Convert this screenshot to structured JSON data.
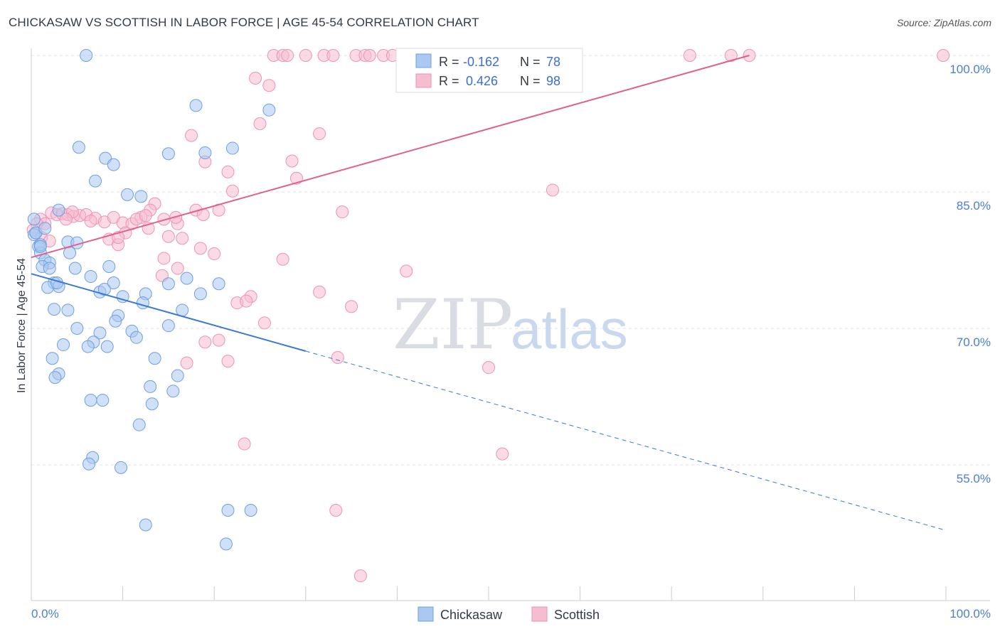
{
  "header": {
    "title": "CHICKASAW VS SCOTTISH IN LABOR FORCE | AGE 45-54 CORRELATION CHART",
    "source": "Source: ZipAtlas.com"
  },
  "watermark": {
    "zip": "ZIP",
    "atlas": "atlas"
  },
  "chart_data": {
    "type": "scatter",
    "title": "CHICKASAW VS SCOTTISH IN LABOR FORCE | AGE 45-54 CORRELATION CHART",
    "xlabel": "",
    "ylabel": "In Labor Force | Age 45-54",
    "xlim": [
      0,
      100
    ],
    "ylim": [
      40,
      102
    ],
    "x_tick_labels": [
      "0.0%",
      "100.0%"
    ],
    "y_ticks": [
      {
        "value": 100,
        "label": "100.0%"
      },
      {
        "value": 85,
        "label": "85.0%"
      },
      {
        "value": 70,
        "label": "70.0%"
      },
      {
        "value": 55,
        "label": "55.0%"
      }
    ],
    "grid": true,
    "legend": {
      "position": "top-center",
      "entries": [
        {
          "name": "Chickasaw",
          "r_label": "R =",
          "r_value": "-0.162",
          "n_label": "N =",
          "n_value": "78"
        },
        {
          "name": "Scottish",
          "r_label": "R =",
          "r_value": "0.426",
          "n_label": "N =",
          "n_value": "98"
        }
      ]
    },
    "colors": {
      "chickasaw_fill": "#aac8f0",
      "chickasaw_stroke": "#6f9fe0",
      "chickasaw_line": "#3a78d4",
      "scottish_fill": "#f6bcd0",
      "scottish_stroke": "#ee93b3",
      "scottish_line": "#e0608e",
      "axis_text": "#4a7fd4",
      "grid": "#e0e3ea"
    },
    "series": [
      {
        "name": "Chickasaw",
        "trend": {
          "x0": 0,
          "y0": 76.0,
          "x1": 30,
          "y1": 67.5,
          "dashed_to_x": 100,
          "dashed_to_y": 47.8
        },
        "points": [
          [
            6.0,
            100.0
          ],
          [
            18.0,
            94.5
          ],
          [
            26.0,
            94.0
          ],
          [
            5.2,
            89.9
          ],
          [
            8.1,
            88.7
          ],
          [
            15.0,
            89.2
          ],
          [
            19.0,
            89.3
          ],
          [
            22.0,
            89.8
          ],
          [
            9.0,
            88.0
          ],
          [
            7.0,
            86.2
          ],
          [
            10.5,
            84.7
          ],
          [
            12.0,
            84.5
          ],
          [
            0.3,
            82.0
          ],
          [
            0.5,
            80.5
          ],
          [
            0.8,
            79.0
          ],
          [
            1.0,
            78.3
          ],
          [
            1.5,
            77.5
          ],
          [
            2.0,
            77.2
          ],
          [
            1.2,
            76.8
          ],
          [
            2.0,
            76.6
          ],
          [
            2.5,
            75.0
          ],
          [
            1.8,
            74.5
          ],
          [
            3.0,
            74.6
          ],
          [
            4.0,
            79.5
          ],
          [
            5.0,
            79.4
          ],
          [
            4.2,
            78.3
          ],
          [
            4.8,
            76.6
          ],
          [
            6.5,
            75.7
          ],
          [
            8.5,
            76.8
          ],
          [
            9.0,
            75.0
          ],
          [
            7.5,
            74.0
          ],
          [
            8.0,
            74.3
          ],
          [
            10.0,
            73.5
          ],
          [
            2.5,
            72.1
          ],
          [
            4.0,
            72.0
          ],
          [
            9.5,
            71.4
          ],
          [
            9.2,
            70.8
          ],
          [
            12.5,
            73.8
          ],
          [
            15.0,
            74.9
          ],
          [
            18.5,
            73.8
          ],
          [
            20.5,
            74.9
          ],
          [
            5.0,
            70.0
          ],
          [
            7.5,
            69.5
          ],
          [
            11.0,
            69.7
          ],
          [
            11.5,
            69.0
          ],
          [
            6.8,
            68.5
          ],
          [
            3.5,
            68.2
          ],
          [
            6.2,
            68.0
          ],
          [
            8.3,
            68.0
          ],
          [
            2.3,
            66.7
          ],
          [
            13.5,
            66.7
          ],
          [
            3.0,
            65.0
          ],
          [
            2.6,
            64.6
          ],
          [
            16.0,
            64.8
          ],
          [
            13.0,
            63.6
          ],
          [
            15.5,
            63.1
          ],
          [
            6.5,
            62.1
          ],
          [
            7.8,
            62.1
          ],
          [
            13.2,
            61.7
          ],
          [
            11.8,
            59.4
          ],
          [
            6.7,
            55.8
          ],
          [
            6.3,
            55.1
          ],
          [
            9.8,
            54.7
          ],
          [
            21.5,
            50.0
          ],
          [
            24.0,
            50.0
          ],
          [
            12.5,
            48.4
          ],
          [
            21.3,
            46.3
          ],
          [
            12.2,
            72.8
          ],
          [
            3.0,
            83.0
          ],
          [
            0.3,
            80.3
          ],
          [
            1.0,
            79.2
          ],
          [
            1.0,
            79.0
          ],
          [
            0.5,
            80.5
          ],
          [
            1.5,
            81.0
          ],
          [
            15.0,
            70.3
          ],
          [
            16.5,
            72.0
          ],
          [
            17.0,
            75.5
          ],
          [
            2.8,
            75.0
          ]
        ]
      },
      {
        "name": "Scottish",
        "trend": {
          "x0": 0,
          "y0": 77.8,
          "x1": 78.5,
          "y1": 100.0
        },
        "points": [
          [
            26.5,
            100.0
          ],
          [
            27.5,
            100.0
          ],
          [
            28.0,
            100.0
          ],
          [
            30.0,
            100.0
          ],
          [
            32.0,
            100.0
          ],
          [
            33.0,
            100.0
          ],
          [
            35.5,
            100.0
          ],
          [
            36.5,
            100.0
          ],
          [
            37.0,
            100.0
          ],
          [
            38.5,
            100.0
          ],
          [
            39.5,
            100.0
          ],
          [
            41.0,
            100.0
          ],
          [
            43.0,
            100.0
          ],
          [
            45.0,
            100.0
          ],
          [
            47.0,
            100.0
          ],
          [
            51.5,
            100.0
          ],
          [
            52.0,
            100.0
          ],
          [
            53.0,
            100.0
          ],
          [
            58.0,
            100.0
          ],
          [
            59.0,
            100.0
          ],
          [
            72.0,
            100.0
          ],
          [
            76.5,
            100.0
          ],
          [
            78.5,
            100.0
          ],
          [
            99.7,
            100.0
          ],
          [
            24.5,
            97.5
          ],
          [
            26.0,
            96.7
          ],
          [
            25.0,
            92.5
          ],
          [
            31.5,
            91.4
          ],
          [
            17.5,
            91.2
          ],
          [
            19.0,
            88.3
          ],
          [
            21.5,
            87.2
          ],
          [
            28.5,
            88.4
          ],
          [
            29.0,
            86.5
          ],
          [
            22.0,
            85.1
          ],
          [
            57.0,
            85.2
          ],
          [
            1.0,
            82.0
          ],
          [
            1.5,
            81.5
          ],
          [
            2.2,
            82.7
          ],
          [
            2.8,
            82.5
          ],
          [
            3.4,
            82.6
          ],
          [
            4.0,
            82.5
          ],
          [
            4.6,
            82.3
          ],
          [
            5.3,
            82.4
          ],
          [
            6.0,
            82.5
          ],
          [
            7.0,
            82.1
          ],
          [
            8.0,
            81.7
          ],
          [
            9.0,
            82.2
          ],
          [
            10.0,
            81.6
          ],
          [
            11.0,
            81.5
          ],
          [
            12.0,
            82.2
          ],
          [
            13.5,
            83.7
          ],
          [
            14.5,
            82.0
          ],
          [
            16.0,
            81.5
          ],
          [
            18.0,
            83.0
          ],
          [
            20.5,
            83.0
          ],
          [
            34.0,
            82.8
          ],
          [
            0.6,
            81.5
          ],
          [
            1.1,
            80.0
          ],
          [
            8.5,
            79.8
          ],
          [
            10.3,
            80.5
          ],
          [
            12.8,
            81.0
          ],
          [
            15.0,
            80.1
          ],
          [
            16.5,
            79.9
          ],
          [
            2.0,
            79.6
          ],
          [
            9.5,
            79.2
          ],
          [
            18.5,
            78.8
          ],
          [
            20.0,
            78.2
          ],
          [
            14.5,
            77.7
          ],
          [
            27.5,
            77.6
          ],
          [
            16.0,
            76.6
          ],
          [
            14.3,
            75.8
          ],
          [
            41.0,
            76.3
          ],
          [
            31.5,
            74.0
          ],
          [
            24.0,
            73.5
          ],
          [
            22.5,
            72.8
          ],
          [
            23.5,
            73.0
          ],
          [
            35.0,
            72.4
          ],
          [
            25.5,
            70.6
          ],
          [
            19.0,
            68.5
          ],
          [
            20.5,
            68.7
          ],
          [
            17.0,
            66.2
          ],
          [
            21.5,
            66.4
          ],
          [
            33.5,
            66.8
          ],
          [
            50.0,
            65.7
          ],
          [
            23.3,
            57.3
          ],
          [
            51.5,
            56.2
          ],
          [
            33.3,
            50.0
          ],
          [
            36.0,
            42.8
          ],
          [
            9.5,
            80.0
          ],
          [
            13.0,
            83.0
          ],
          [
            11.5,
            82.0
          ],
          [
            4.5,
            82.8
          ],
          [
            3.8,
            82.0
          ],
          [
            6.5,
            81.8
          ],
          [
            0.2,
            80.8
          ],
          [
            18.8,
            82.5
          ],
          [
            12.5,
            82.4
          ],
          [
            15.8,
            82.2
          ]
        ]
      }
    ]
  }
}
